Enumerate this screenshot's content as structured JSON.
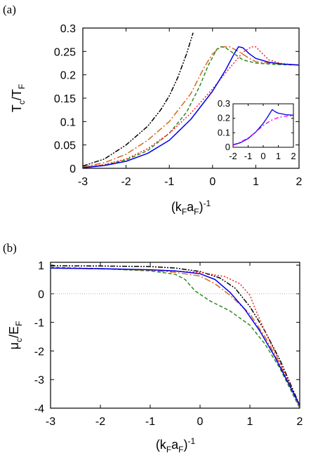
{
  "figure": {
    "panel_a_label": "(a)",
    "panel_b_label": "(b)"
  },
  "chart_data": [
    {
      "id": "a",
      "type": "line",
      "title": "",
      "xlabel": "(k_F a_F)^-1",
      "ylabel": "T_c/T_F",
      "xlim": [
        -3,
        2
      ],
      "ylim": [
        0,
        0.3
      ],
      "xticks": [
        -3,
        -2,
        -1,
        0,
        1,
        2
      ],
      "yticks": [
        0,
        0.05,
        0.1,
        0.15,
        0.2,
        0.25,
        0.3
      ],
      "ytick_labels": [
        "0",
        "0.05",
        "0.1",
        "0.15",
        "0.2",
        "0.25",
        "0.3"
      ],
      "grid": false,
      "legend": "none",
      "series": [
        {
          "color": "#000000",
          "style": "dash-dot-dot",
          "x": [
            -3,
            -2.5,
            -2,
            -1.5,
            -1.2,
            -1.0,
            -0.8,
            -0.6,
            -0.45
          ],
          "y": [
            0.005,
            0.02,
            0.05,
            0.09,
            0.125,
            0.155,
            0.195,
            0.245,
            0.29
          ]
        },
        {
          "color": "#d2691e",
          "style": "long-dash-dot",
          "x": [
            -3,
            -2.5,
            -2,
            -1.5,
            -1.0,
            -0.5,
            -0.2,
            0.0,
            0.2,
            0.4,
            0.6,
            0.8,
            1.0,
            1.5,
            2.0
          ],
          "y": [
            0.003,
            0.012,
            0.03,
            0.06,
            0.1,
            0.16,
            0.215,
            0.245,
            0.26,
            0.26,
            0.25,
            0.238,
            0.228,
            0.223,
            0.221
          ]
        },
        {
          "color": "#2e8b22",
          "style": "dashed",
          "x": [
            -3,
            -2.5,
            -2,
            -1.5,
            -1.0,
            -0.6,
            -0.3,
            -0.1,
            0.1,
            0.2,
            0.3,
            0.5,
            0.7,
            1.0,
            1.5,
            2.0
          ],
          "y": [
            0.002,
            0.007,
            0.018,
            0.038,
            0.075,
            0.12,
            0.175,
            0.22,
            0.255,
            0.26,
            0.258,
            0.245,
            0.232,
            0.225,
            0.222,
            0.221
          ]
        },
        {
          "color": "#ff2020",
          "style": "dotted",
          "x": [
            -3,
            -2.5,
            -2,
            -1.5,
            -1.0,
            -0.5,
            0.0,
            0.4,
            0.7,
            0.9,
            1.0,
            1.1,
            1.3,
            1.6,
            2.0
          ],
          "y": [
            0.002,
            0.008,
            0.02,
            0.042,
            0.075,
            0.118,
            0.17,
            0.215,
            0.248,
            0.26,
            0.26,
            0.25,
            0.232,
            0.224,
            0.221
          ]
        },
        {
          "color": "#0000ee",
          "style": "solid",
          "x": [
            -3,
            -2.5,
            -2,
            -1.5,
            -1.0,
            -0.5,
            0.0,
            0.3,
            0.5,
            0.6,
            0.7,
            0.85,
            1.0,
            1.3,
            1.6,
            2.0
          ],
          "y": [
            0.001,
            0.006,
            0.015,
            0.032,
            0.06,
            0.105,
            0.165,
            0.21,
            0.245,
            0.26,
            0.258,
            0.245,
            0.235,
            0.227,
            0.223,
            0.221
          ]
        }
      ],
      "inset": {
        "xlim": [
          -2,
          2
        ],
        "ylim": [
          0,
          0.3
        ],
        "xticks": [
          -2,
          -1,
          0,
          1,
          2
        ],
        "yticks": [
          0,
          0.1,
          0.2,
          0.3
        ],
        "ytick_labels": [
          "0",
          "0.1",
          "0.2",
          "0.3"
        ],
        "series": [
          {
            "color": "#0000ee",
            "style": "solid",
            "x": [
              -2,
              -1.5,
              -1.0,
              -0.5,
              0.0,
              0.3,
              0.5,
              0.6,
              0.8,
              1.0,
              1.5,
              2.0
            ],
            "y": [
              0.015,
              0.032,
              0.06,
              0.105,
              0.165,
              0.21,
              0.245,
              0.26,
              0.245,
              0.235,
              0.225,
              0.221
            ]
          },
          {
            "color": "#ee00ee",
            "style": "dash-dot",
            "x": [
              -2,
              -1.5,
              -1.0,
              -0.5,
              0.0,
              0.5,
              1.0,
              1.5,
              2.0
            ],
            "y": [
              0.018,
              0.036,
              0.065,
              0.105,
              0.15,
              0.185,
              0.205,
              0.215,
              0.218
            ]
          }
        ]
      }
    },
    {
      "id": "b",
      "type": "line",
      "title": "",
      "xlabel": "(k_F a_F)^-1",
      "ylabel": "μ_c/E_F",
      "xlim": [
        -3,
        2
      ],
      "ylim": [
        -4,
        1.1
      ],
      "xticks": [
        -3,
        -2,
        -1,
        0,
        1,
        2
      ],
      "yticks": [
        1,
        0,
        -1,
        -2,
        -3,
        -4
      ],
      "reference_line_y": 0,
      "grid": false,
      "legend": "none",
      "series": [
        {
          "color": "#000000",
          "style": "dash-dot-dot",
          "x": [
            -3,
            -2,
            -1,
            -0.5,
            0.0,
            0.4,
            0.7,
            1.0,
            1.3,
            1.6,
            2.0
          ],
          "y": [
            0.98,
            0.97,
            0.95,
            0.9,
            0.78,
            0.55,
            0.2,
            -0.45,
            -1.3,
            -2.3,
            -3.9
          ]
        },
        {
          "color": "#d2691e",
          "style": "long-dash-dot",
          "x": [
            -3,
            -2,
            -1,
            -0.5,
            0.0,
            0.3,
            0.6,
            1.0,
            1.3,
            1.6,
            2.0
          ],
          "y": [
            0.9,
            0.87,
            0.82,
            0.75,
            0.62,
            0.35,
            -0.05,
            -0.7,
            -1.5,
            -2.45,
            -3.95
          ]
        },
        {
          "color": "#2e8b22",
          "style": "dashed",
          "x": [
            -3,
            -2,
            -1,
            -0.5,
            -0.3,
            -0.1,
            0.2,
            0.6,
            1.0,
            1.3,
            1.6,
            2.0
          ],
          "y": [
            0.92,
            0.88,
            0.8,
            0.68,
            0.5,
            0.1,
            -0.25,
            -0.6,
            -1.1,
            -1.75,
            -2.6,
            -4.0
          ]
        },
        {
          "color": "#ff2020",
          "style": "dotted",
          "x": [
            -3,
            -2,
            -1,
            0.0,
            0.5,
            0.8,
            1.0,
            1.1,
            1.3,
            1.6,
            2.0
          ],
          "y": [
            0.9,
            0.87,
            0.83,
            0.75,
            0.6,
            0.35,
            -0.05,
            -0.5,
            -1.3,
            -2.4,
            -3.95
          ]
        },
        {
          "color": "#0000ee",
          "style": "solid",
          "x": [
            -3,
            -2,
            -1,
            -0.5,
            0.0,
            0.3,
            0.6,
            0.9,
            1.2,
            1.5,
            2.0
          ],
          "y": [
            0.9,
            0.88,
            0.84,
            0.8,
            0.7,
            0.5,
            0.05,
            -0.55,
            -1.3,
            -2.2,
            -3.9
          ]
        }
      ]
    }
  ]
}
